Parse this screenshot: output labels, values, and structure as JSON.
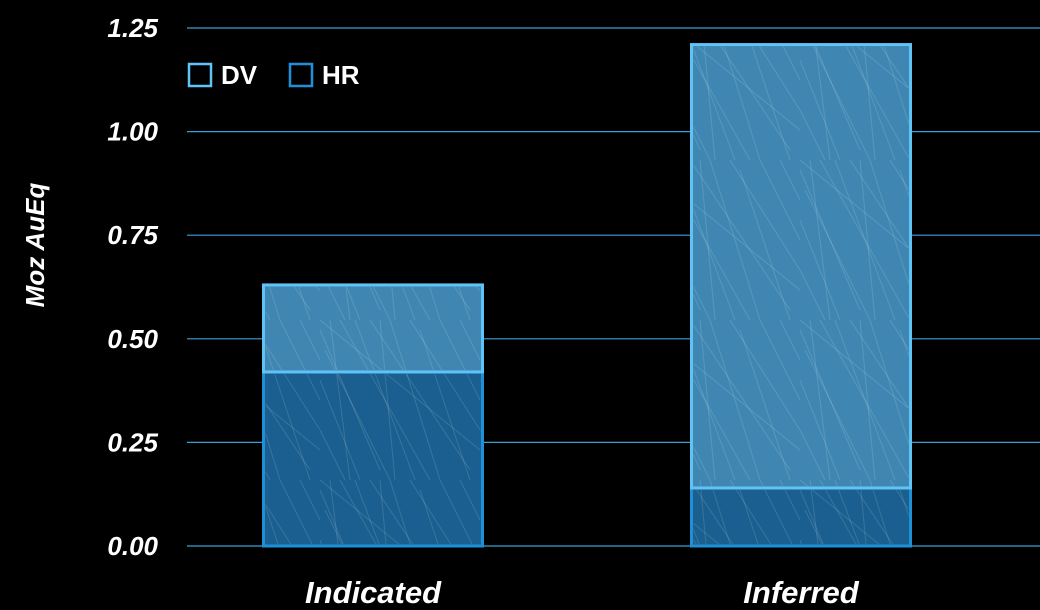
{
  "chart_data": {
    "type": "bar",
    "stacked": true,
    "categories": [
      "Indicated",
      "Inferred"
    ],
    "series": [
      {
        "name": "HR",
        "values": [
          0.42,
          0.14
        ],
        "color": "#1a5f8f",
        "stroke": "#1f8fd6"
      },
      {
        "name": "DV",
        "values": [
          0.21,
          1.07
        ],
        "color": "#3f87b2",
        "stroke": "#5fc4f5"
      }
    ],
    "ylabel": "Moz AuEq",
    "xlabel": "",
    "ylim": [
      0,
      1.25
    ],
    "yticks": [
      "0.00",
      "0.25",
      "0.50",
      "0.75",
      "1.00",
      "1.25"
    ],
    "grid": true,
    "gridline_color": "#3a9fd8",
    "legend": {
      "placement": "top-left",
      "entries": [
        {
          "label": "DV",
          "color": "#5fc4f5"
        },
        {
          "label": "HR",
          "color": "#1f8fd6"
        }
      ]
    }
  }
}
